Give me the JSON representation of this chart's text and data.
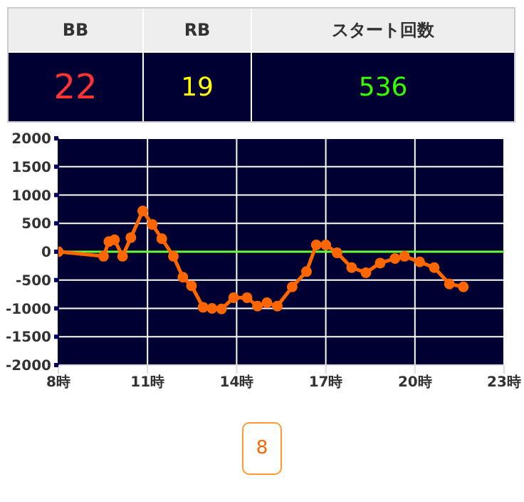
{
  "chart_data": [
    {
      "type": "other",
      "annotations": [
        "BB",
        "RB",
        "スタート回数",
        "22",
        "19",
        "536"
      ]
    },
    {
      "type": "line",
      "x": [
        8.0,
        9.52,
        9.7,
        9.89,
        10.16,
        10.44,
        10.84,
        11.16,
        11.48,
        11.87,
        12.19,
        12.48,
        12.87,
        13.17,
        13.49,
        13.9,
        14.35,
        14.7,
        15.02,
        15.37,
        15.87,
        16.35,
        16.68,
        17.0,
        17.38,
        17.87,
        18.35,
        18.83,
        19.33,
        19.65,
        20.16,
        20.65,
        21.16,
        21.63
      ],
      "series": [
        {
          "color": "#ff6600",
          "values": [
            0,
            -80,
            180,
            210,
            -80,
            250,
            720,
            480,
            230,
            -80,
            -450,
            -600,
            -980,
            -1000,
            -1010,
            -810,
            -810,
            -960,
            -900,
            -960,
            -620,
            -350,
            120,
            120,
            -20,
            -280,
            -370,
            -200,
            -120,
            -80,
            -180,
            -280,
            -570,
            -620
          ]
        }
      ],
      "xlim": [
        8,
        23
      ],
      "xticks": [
        {
          "value": 8,
          "label": "8時"
        },
        {
          "value": 11,
          "label": "11時"
        },
        {
          "value": 14,
          "label": "14時"
        },
        {
          "value": 17,
          "label": "17時"
        },
        {
          "value": 20,
          "label": "20時"
        },
        {
          "value": 23,
          "label": "23時"
        }
      ],
      "ylim": [
        -2000,
        2000
      ],
      "yticks": [
        -2000,
        -1500,
        -1000,
        -500,
        0,
        500,
        1000,
        1500,
        2000
      ],
      "grid": true,
      "marker": "circle",
      "ref_lines": [
        {
          "axis": "y",
          "value": 0,
          "color": "#66ff33"
        }
      ],
      "annotations": [
        "8"
      ]
    }
  ]
}
